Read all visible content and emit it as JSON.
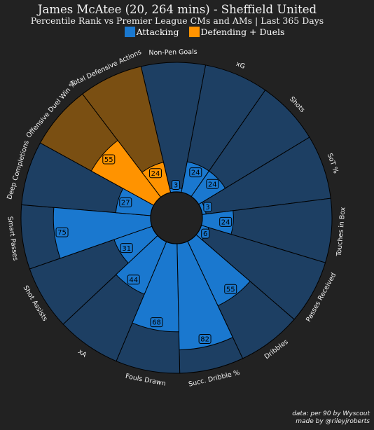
{
  "header": {
    "title": "James McAtee (20, 264 mins) - Sheffield United",
    "subtitle": "Percentile Rank vs Premier League CMs and AMs | Last 365 Days"
  },
  "legend": [
    {
      "label": "Attacking",
      "color": "#1a78cf"
    },
    {
      "label": "Defending + Duels",
      "color": "#ff9300"
    }
  ],
  "colors": {
    "background": "#222222",
    "slice_background": "#1d3f63",
    "slice_outline": "#000000",
    "value_box_attacking": "#1a78cf",
    "value_box_defending": "#ff9300"
  },
  "chart_data": {
    "type": "pie",
    "subtype": "radial-bar (pizza)",
    "scale": [
      0,
      100
    ],
    "categories": [
      "Non-Pen Goals",
      "xG",
      "Shots",
      "SoT %",
      "Touches in Box",
      "Passes Received",
      "Dribbles",
      "Succ. Dribble %",
      "Fouls Drawn",
      "xA",
      "Shot Assists",
      "Smart Passes",
      "Deep Completions",
      "Offensive Duel Win %",
      "Total Defensive Actions"
    ],
    "values": [
      3,
      24,
      24,
      3,
      24,
      6,
      55,
      82,
      68,
      44,
      31,
      75,
      27,
      55,
      24
    ],
    "groups": [
      "Attacking",
      "Attacking",
      "Attacking",
      "Attacking",
      "Attacking",
      "Attacking",
      "Attacking",
      "Attacking",
      "Attacking",
      "Attacking",
      "Attacking",
      "Attacking",
      "Attacking",
      "Defending + Duels",
      "Defending + Duels"
    ]
  },
  "footer": {
    "line1": "data: per 90 by Wyscout",
    "line2": "made by @rileyjroberts"
  }
}
